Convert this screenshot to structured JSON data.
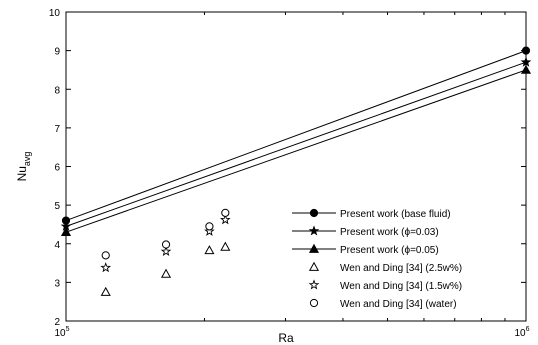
{
  "chart_data": {
    "type": "scatter",
    "xscale": "log",
    "xlim": [
      100000,
      1000000
    ],
    "ylim": [
      2,
      10
    ],
    "xlabel": "Ra",
    "ylabel": "Nu",
    "ylabel_sub": "avg",
    "xticks": [
      {
        "value": 100000,
        "base": "10",
        "exp": "5"
      },
      {
        "value": 1000000,
        "base": "10",
        "exp": "6"
      }
    ],
    "yticks": [
      2,
      3,
      4,
      5,
      6,
      7,
      8,
      9,
      10
    ],
    "grid": false,
    "legend": "bottom-right",
    "series": [
      {
        "name": "Present work (base fluid)",
        "kind": "line",
        "marker": "filled-circle",
        "points": [
          [
            100000,
            4.6
          ],
          [
            1000000,
            9.0
          ]
        ]
      },
      {
        "name": "Present work (ϕ=0.03)",
        "kind": "line",
        "marker": "filled-star",
        "points": [
          [
            100000,
            4.45
          ],
          [
            1000000,
            8.7
          ]
        ]
      },
      {
        "name": "Present work (ϕ=0.05)",
        "kind": "line",
        "marker": "filled-triangle",
        "points": [
          [
            100000,
            4.3
          ],
          [
            1000000,
            8.5
          ]
        ]
      },
      {
        "name": "Wen and Ding [34] (2.5w%)",
        "kind": "scatter",
        "marker": "open-triangle",
        "points": [
          [
            122000,
            2.75
          ],
          [
            165000,
            3.22
          ],
          [
            205000,
            3.83
          ],
          [
            222000,
            3.92
          ]
        ]
      },
      {
        "name": "Wen and Ding [34] (1.5w%)",
        "kind": "scatter",
        "marker": "open-star",
        "points": [
          [
            122000,
            3.38
          ],
          [
            165000,
            3.8
          ],
          [
            205000,
            4.32
          ],
          [
            222000,
            4.62
          ]
        ]
      },
      {
        "name": "Wen and Ding [34] (water)",
        "kind": "scatter",
        "marker": "open-circle",
        "points": [
          [
            122000,
            3.7
          ],
          [
            165000,
            3.98
          ],
          [
            205000,
            4.45
          ],
          [
            222000,
            4.8
          ]
        ]
      }
    ]
  }
}
